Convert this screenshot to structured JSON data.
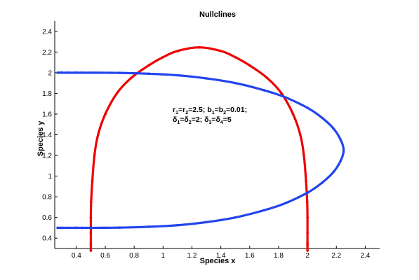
{
  "chart_data": {
    "type": "line",
    "title": "Nullclines",
    "xlabel": "Species x",
    "ylabel": "Species y",
    "xlim": [
      0.25,
      2.5
    ],
    "ylim": [
      0.3,
      2.5
    ],
    "xticks": [
      0.4,
      0.6,
      0.8,
      1,
      1.2,
      1.4,
      1.6,
      1.8,
      2,
      2.2,
      2.4
    ],
    "yticks": [
      0.4,
      0.6,
      0.8,
      1,
      1.2,
      1.4,
      1.6,
      1.8,
      2,
      2.2,
      2.4
    ],
    "grid": false,
    "annotation": {
      "line1": [
        {
          "t": "r"
        },
        {
          "t": "1",
          "sub": true
        },
        {
          "t": "=r"
        },
        {
          "t": "2",
          "sub": true
        },
        {
          "t": "=2.5; b"
        },
        {
          "t": "1",
          "sub": true
        },
        {
          "t": "=b"
        },
        {
          "t": "2",
          "sub": true
        },
        {
          "t": "=0.01;"
        }
      ],
      "line2": [
        {
          "t": "δ"
        },
        {
          "t": "1",
          "sub": true
        },
        {
          "t": "=δ"
        },
        {
          "t": "2",
          "sub": true
        },
        {
          "t": "=2; δ"
        },
        {
          "t": "3",
          "sub": true
        },
        {
          "t": "=δ"
        },
        {
          "t": "4",
          "sub": true
        },
        {
          "t": "=5"
        }
      ]
    },
    "series": [
      {
        "color": "#ee0000",
        "shape": "arch",
        "points": [
          [
            0.5,
            0.28
          ],
          [
            0.5,
            0.35
          ],
          [
            0.5,
            0.45
          ],
          [
            0.5,
            0.6
          ],
          [
            0.502,
            0.75
          ],
          [
            0.51,
            0.95
          ],
          [
            0.525,
            1.2
          ],
          [
            0.55,
            1.4
          ],
          [
            0.6,
            1.6
          ],
          [
            0.68,
            1.8
          ],
          [
            0.78,
            1.95
          ],
          [
            0.9,
            2.07
          ],
          [
            1.0,
            2.15
          ],
          [
            1.1,
            2.21
          ],
          [
            1.25,
            2.245
          ],
          [
            1.4,
            2.21
          ],
          [
            1.5,
            2.15
          ],
          [
            1.6,
            2.07
          ],
          [
            1.72,
            1.95
          ],
          [
            1.82,
            1.8
          ],
          [
            1.9,
            1.6
          ],
          [
            1.95,
            1.4
          ],
          [
            1.975,
            1.2
          ],
          [
            1.99,
            0.95
          ],
          [
            1.998,
            0.75
          ],
          [
            2.0,
            0.6
          ],
          [
            2.0,
            0.45
          ],
          [
            2.0,
            0.35
          ],
          [
            2.0,
            0.28
          ]
        ]
      },
      {
        "color": "#2244ee",
        "shape": "loop",
        "points": [
          [
            0.27,
            2.0
          ],
          [
            0.3,
            2.0
          ],
          [
            0.4,
            2.0
          ],
          [
            0.5,
            2.0
          ],
          [
            0.7,
            1.998
          ],
          [
            0.9,
            1.99
          ],
          [
            1.1,
            1.975
          ],
          [
            1.3,
            1.945
          ],
          [
            1.5,
            1.9
          ],
          [
            1.7,
            1.83
          ],
          [
            1.85,
            1.76
          ],
          [
            2.0,
            1.66
          ],
          [
            2.1,
            1.565
          ],
          [
            2.18,
            1.46
          ],
          [
            2.23,
            1.35
          ],
          [
            2.25,
            1.25
          ],
          [
            2.23,
            1.15
          ],
          [
            2.18,
            1.04
          ],
          [
            2.1,
            0.935
          ],
          [
            2.0,
            0.84
          ],
          [
            1.85,
            0.74
          ],
          [
            1.7,
            0.67
          ],
          [
            1.5,
            0.6
          ],
          [
            1.3,
            0.555
          ],
          [
            1.1,
            0.525
          ],
          [
            0.9,
            0.51
          ],
          [
            0.7,
            0.502
          ],
          [
            0.5,
            0.5
          ],
          [
            0.4,
            0.5
          ],
          [
            0.3,
            0.5
          ],
          [
            0.27,
            0.5
          ]
        ]
      }
    ]
  }
}
